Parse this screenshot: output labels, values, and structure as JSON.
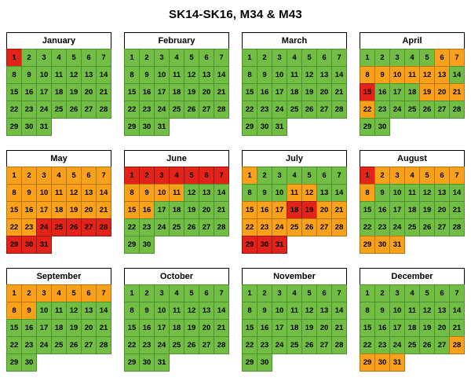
{
  "title": "SK14-SK16, M34 & M43",
  "chart_data": {
    "type": "heatmap",
    "subtype": "calendar-year-daily-status",
    "title": "SK14-SK16, M34 & M43",
    "status_colors": {
      "G": "#72BE44",
      "O": "#F9A11B",
      "R": "#E2231A"
    },
    "status_border_colors": {
      "G": "#4E8F2E",
      "O": "#B5750A",
      "R": "#9A1410"
    },
    "legend": {
      "G": "green",
      "O": "orange",
      "R": "red"
    },
    "months": [
      {
        "name": "January",
        "pattern": "RGGGGGGGGGGGGGGGGGGGGGGGGGGGGGG"
      },
      {
        "name": "February",
        "pattern": "GGGGGGGGGGGGGGGGGGGGGGGGGGGGGGG"
      },
      {
        "name": "March",
        "pattern": "GGGGGGGGGGGGGGGGGGGGGGGGGGGGGGG"
      },
      {
        "name": "April",
        "pattern": "GGGGGOOOOOOOOGRGGGOOOOGGGGGGGG"
      },
      {
        "name": "May",
        "pattern": "OOOOOOOOOOOOOOOOOOOOOOORRRRRRRR"
      },
      {
        "name": "June",
        "pattern": "RRRRRRROOOOGGGOOGGGGGGGGGGGGGG"
      },
      {
        "name": "July",
        "pattern": "OGGGGGGGGGOOGGOOORROOOOOOOOORRR"
      },
      {
        "name": "August",
        "pattern": "ROOOOOOOGGGGGGGGGGGGGGGGGGGGOOO"
      },
      {
        "name": "September",
        "pattern": "OOOOOOOOOGGGGGGGGGGGGGGGGGGGGG"
      },
      {
        "name": "October",
        "pattern": "GGGGGGGGGGGGGGGGGGGGGGGGGGGGGGG"
      },
      {
        "name": "November",
        "pattern": "GGGGGGGGGGGGGGGGGGGGGGGGGGGGGG"
      },
      {
        "name": "December",
        "pattern": "GGGGGGGGGGGGGGGGGGGGGGGGGGGOOOO"
      }
    ]
  }
}
